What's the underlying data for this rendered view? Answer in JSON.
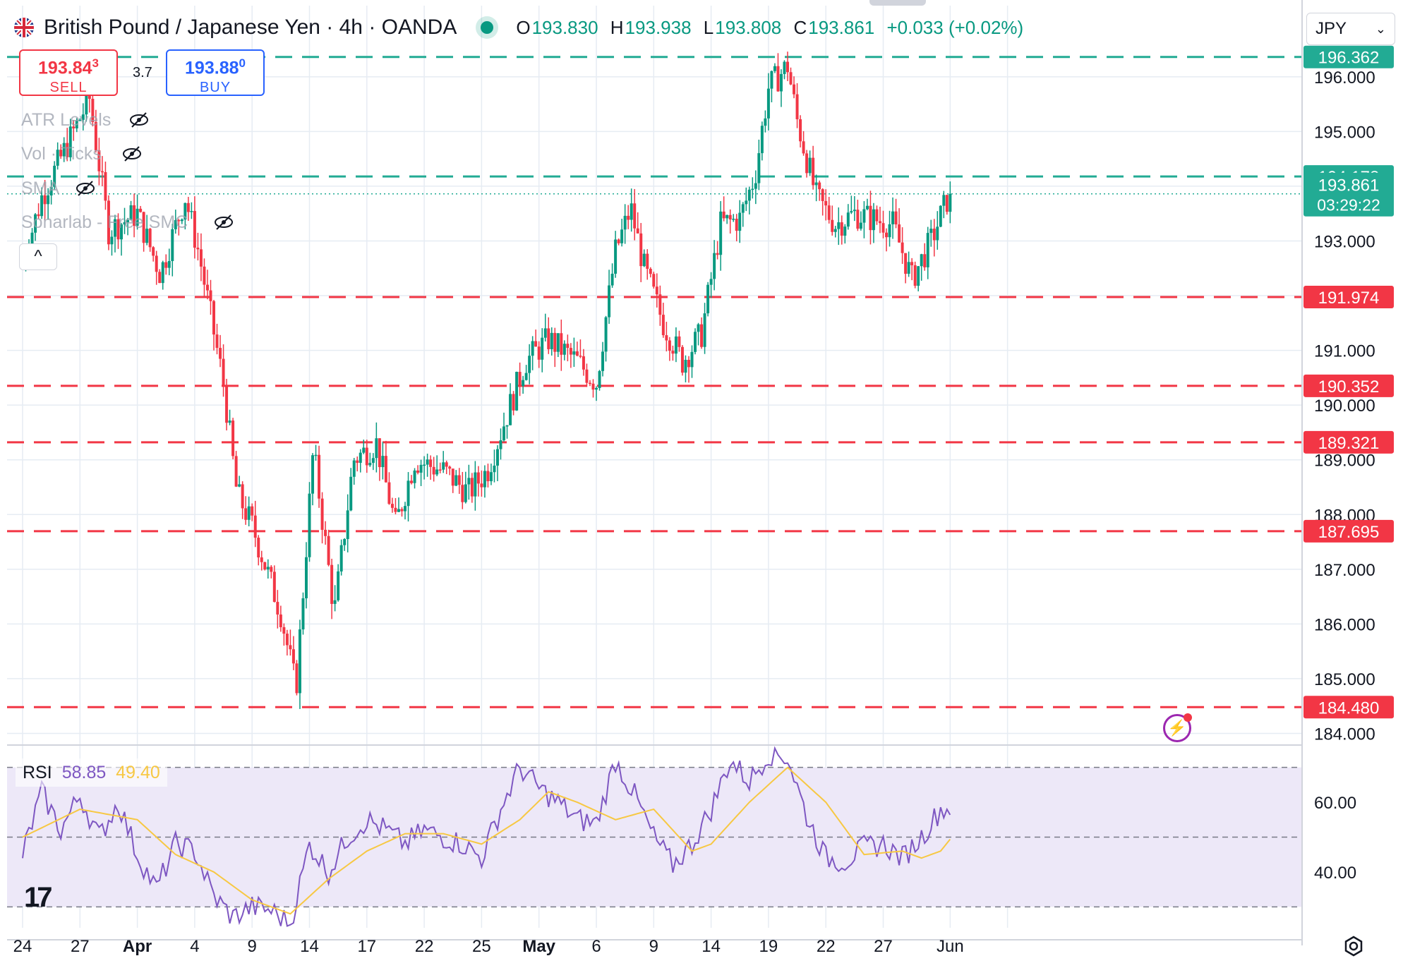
{
  "header": {
    "title": "British Pound / Japanese Yen · 4h · OANDA",
    "ohlc": {
      "o_label": "O",
      "o": "193.830",
      "h_label": "H",
      "h": "193.938",
      "l_label": "L",
      "l": "193.808",
      "c_label": "C",
      "c": "193.861",
      "change": "+0.033 (+0.02%)"
    },
    "currency": "JPY"
  },
  "trade": {
    "sell_price_main": "193.84",
    "sell_price_frac": "3",
    "sell_label": "SELL",
    "buy_price_main": "193.88",
    "buy_price_frac": "0",
    "buy_label": "BUY",
    "spread": "3.7"
  },
  "indicators": [
    "ATR Levels",
    "Vol · Ticks",
    "SMA",
    "Sonarlab - Free SMC"
  ],
  "collapse_symbol": "^",
  "rsi": {
    "label": "RSI",
    "value": "58.85",
    "ma_value": "49.40",
    "color": "#7e57c2",
    "ma_color": "#f7c843",
    "band_color": "#ede8f8"
  },
  "colors": {
    "up": "#089981",
    "down": "#f23645",
    "grid": "#e6ecf3",
    "text": "#131722"
  },
  "chart_data": {
    "type": "candlestick",
    "title": "British Pound / Japanese Yen · 4h · OANDA",
    "ylim": [
      183.8,
      197.3
    ],
    "y_ticks": [
      "184.000",
      "185.000",
      "186.000",
      "187.000",
      "188.000",
      "189.000",
      "190.000",
      "191.000",
      "193.000",
      "195.000",
      "196.000"
    ],
    "x_ticks": [
      "24",
      "27",
      "Apr",
      "4",
      "9",
      "14",
      "17",
      "22",
      "25",
      "May",
      "6",
      "9",
      "14",
      "19",
      "22",
      "27",
      "Jun"
    ],
    "levels": [
      {
        "value": "196.362",
        "color": "#22ab94"
      },
      {
        "value": "194.178",
        "color": "#22ab94"
      },
      {
        "value": "191.974",
        "color": "#f23645"
      },
      {
        "value": "190.352",
        "color": "#f23645"
      },
      {
        "value": "189.321",
        "color": "#f23645"
      },
      {
        "value": "187.695",
        "color": "#f23645"
      },
      {
        "value": "184.480",
        "color": "#f23645"
      }
    ],
    "current": {
      "price": "193.861",
      "countdown": "03:29:22"
    },
    "anchors": [
      {
        "day": 0,
        "close": 192.6
      },
      {
        "day": 1,
        "close": 193.8
      },
      {
        "day": 3.5,
        "close": 195.6
      },
      {
        "day": 4.5,
        "close": 193.2
      },
      {
        "day": 6,
        "close": 193.5
      },
      {
        "day": 7.2,
        "close": 192.4
      },
      {
        "day": 8.5,
        "close": 193.8
      },
      {
        "day": 9.2,
        "close": 192.8
      },
      {
        "day": 10.5,
        "close": 190.4
      },
      {
        "day": 11.2,
        "close": 188.4
      },
      {
        "day": 12,
        "close": 187.8
      },
      {
        "day": 13.5,
        "close": 186.2
      },
      {
        "day": 14.3,
        "close": 184.8
      },
      {
        "day": 15.2,
        "close": 189.2
      },
      {
        "day": 16.3,
        "close": 186.2
      },
      {
        "day": 17.3,
        "close": 189
      },
      {
        "day": 18.5,
        "close": 189.3
      },
      {
        "day": 19.5,
        "close": 187.8
      },
      {
        "day": 20.5,
        "close": 189
      },
      {
        "day": 22,
        "close": 188.8
      },
      {
        "day": 23.3,
        "close": 188.4
      },
      {
        "day": 24.3,
        "close": 188.8
      },
      {
        "day": 25.3,
        "close": 189.8
      },
      {
        "day": 26.3,
        "close": 190.8
      },
      {
        "day": 27.5,
        "close": 191.2
      },
      {
        "day": 29,
        "close": 190.8
      },
      {
        "day": 30,
        "close": 190.4
      },
      {
        "day": 31,
        "close": 192.8
      },
      {
        "day": 31.8,
        "close": 193.6
      },
      {
        "day": 32.5,
        "close": 192.5
      },
      {
        "day": 33.5,
        "close": 191.5
      },
      {
        "day": 34.5,
        "close": 190.8
      },
      {
        "day": 35.5,
        "close": 191.3
      },
      {
        "day": 36.5,
        "close": 193.3
      },
      {
        "day": 37.5,
        "close": 193.4
      },
      {
        "day": 38.3,
        "close": 194.2
      },
      {
        "day": 39,
        "close": 195.8
      },
      {
        "day": 40,
        "close": 196.2
      },
      {
        "day": 40.5,
        "close": 195.2
      },
      {
        "day": 41.5,
        "close": 193.8
      },
      {
        "day": 42.5,
        "close": 193.3
      },
      {
        "day": 43.5,
        "close": 193.5
      },
      {
        "day": 44.5,
        "close": 193.4
      },
      {
        "day": 45.5,
        "close": 193.3
      },
      {
        "day": 46.5,
        "close": 192.3
      },
      {
        "day": 47.5,
        "close": 193.0
      },
      {
        "day": 48.5,
        "close": 193.9
      }
    ],
    "rsi_ylim": [
      24,
      76
    ],
    "rsi_ticks": [
      "40.00",
      "60.00"
    ],
    "rsi_levels": [
      30,
      50,
      70
    ],
    "rsi_anchors": [
      {
        "day": 0,
        "v": 45
      },
      {
        "day": 1,
        "v": 63
      },
      {
        "day": 2,
        "v": 52
      },
      {
        "day": 3,
        "v": 62
      },
      {
        "day": 4,
        "v": 50
      },
      {
        "day": 5,
        "v": 60
      },
      {
        "day": 6,
        "v": 45
      },
      {
        "day": 7,
        "v": 35
      },
      {
        "day": 8,
        "v": 48
      },
      {
        "day": 9,
        "v": 46
      },
      {
        "day": 10,
        "v": 33
      },
      {
        "day": 11,
        "v": 27
      },
      {
        "day": 12,
        "v": 30
      },
      {
        "day": 13,
        "v": 29
      },
      {
        "day": 14,
        "v": 25
      },
      {
        "day": 15,
        "v": 48
      },
      {
        "day": 16,
        "v": 40
      },
      {
        "day": 17,
        "v": 50
      },
      {
        "day": 18,
        "v": 55
      },
      {
        "day": 19,
        "v": 52
      },
      {
        "day": 20,
        "v": 48
      },
      {
        "day": 21,
        "v": 52
      },
      {
        "day": 22,
        "v": 50
      },
      {
        "day": 23,
        "v": 48
      },
      {
        "day": 24,
        "v": 44
      },
      {
        "day": 25,
        "v": 58
      },
      {
        "day": 26,
        "v": 70
      },
      {
        "day": 27,
        "v": 64
      },
      {
        "day": 28,
        "v": 60
      },
      {
        "day": 29,
        "v": 55
      },
      {
        "day": 30,
        "v": 54
      },
      {
        "day": 31,
        "v": 72
      },
      {
        "day": 32,
        "v": 62
      },
      {
        "day": 33,
        "v": 50
      },
      {
        "day": 34,
        "v": 42
      },
      {
        "day": 35,
        "v": 48
      },
      {
        "day": 36,
        "v": 58
      },
      {
        "day": 37,
        "v": 72
      },
      {
        "day": 38,
        "v": 66
      },
      {
        "day": 39,
        "v": 74
      },
      {
        "day": 40,
        "v": 73
      },
      {
        "day": 41,
        "v": 56
      },
      {
        "day": 42,
        "v": 44
      },
      {
        "day": 43,
        "v": 43
      },
      {
        "day": 44,
        "v": 47
      },
      {
        "day": 45,
        "v": 48
      },
      {
        "day": 46,
        "v": 44
      },
      {
        "day": 47,
        "v": 50
      },
      {
        "day": 48,
        "v": 58
      }
    ],
    "rsi_ma_anchors": [
      {
        "day": 0,
        "v": 50
      },
      {
        "day": 3,
        "v": 58
      },
      {
        "day": 6,
        "v": 55
      },
      {
        "day": 8,
        "v": 45
      },
      {
        "day": 10,
        "v": 40
      },
      {
        "day": 12,
        "v": 32
      },
      {
        "day": 14,
        "v": 28
      },
      {
        "day": 16,
        "v": 38
      },
      {
        "day": 18,
        "v": 46
      },
      {
        "day": 20,
        "v": 51
      },
      {
        "day": 22,
        "v": 51
      },
      {
        "day": 24,
        "v": 48
      },
      {
        "day": 26,
        "v": 55
      },
      {
        "day": 27.5,
        "v": 63
      },
      {
        "day": 29,
        "v": 60
      },
      {
        "day": 31,
        "v": 55
      },
      {
        "day": 33,
        "v": 58
      },
      {
        "day": 35,
        "v": 46
      },
      {
        "day": 36,
        "v": 48
      },
      {
        "day": 38,
        "v": 60
      },
      {
        "day": 40,
        "v": 70
      },
      {
        "day": 42,
        "v": 60
      },
      {
        "day": 44,
        "v": 45
      },
      {
        "day": 46,
        "v": 46
      },
      {
        "day": 47,
        "v": 44
      },
      {
        "day": 48,
        "v": 46
      },
      {
        "day": 48.5,
        "v": 49.4
      }
    ]
  }
}
